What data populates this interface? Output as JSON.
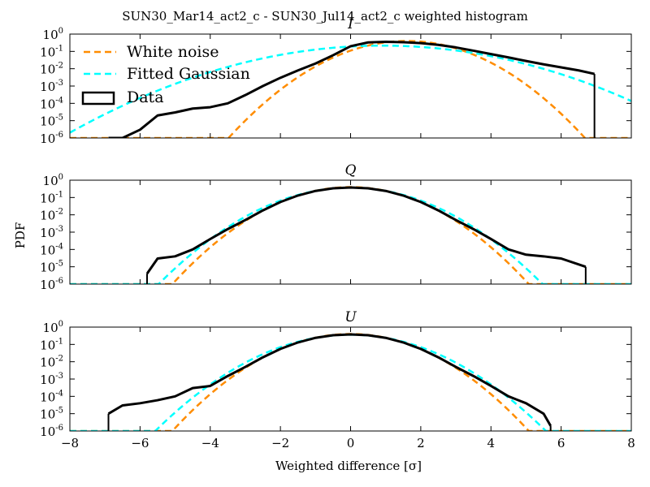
{
  "suptitle": "SUN30_Mar14_act2_c - SUN30_Jul14_act2_c weighted histogram",
  "ylabel": "PDF",
  "xlabel": "Weighted difference [σ]",
  "colors": {
    "white_noise": "#ff8c00",
    "fitted_gaussian": "#00ffff",
    "data": "#000000",
    "axes": "#000000",
    "background": "#ffffff"
  },
  "legend": {
    "placement": "upper-left (top panel)",
    "items": [
      {
        "label": "White noise",
        "style": "dashed",
        "color": "#ff8c00"
      },
      {
        "label": "Fitted Gaussian",
        "style": "dashed",
        "color": "#00ffff"
      },
      {
        "label": "Data",
        "style": "box",
        "color": "#000000"
      }
    ]
  },
  "x_ticks": [
    "−8",
    "−6",
    "−4",
    "−2",
    "0",
    "2",
    "4",
    "6",
    "8"
  ],
  "y_ticks": [
    {
      "base": "10",
      "exp": "0"
    },
    {
      "base": "10",
      "exp": "-1"
    },
    {
      "base": "10",
      "exp": "-2"
    },
    {
      "base": "10",
      "exp": "-3"
    },
    {
      "base": "10",
      "exp": "-4"
    },
    {
      "base": "10",
      "exp": "-5"
    },
    {
      "base": "10",
      "exp": "-6"
    }
  ],
  "chart_data": [
    {
      "type": "line",
      "title": "I",
      "xlim": [
        -8,
        8
      ],
      "ylim": [
        1e-06,
        1
      ],
      "yscale": "log",
      "grid": false,
      "series": [
        {
          "name": "White noise",
          "kind": "gaussian",
          "mean": 1.6,
          "sigma": 1.0
        },
        {
          "name": "Fitted Gaussian",
          "kind": "gaussian",
          "mean": 0.9,
          "sigma": 1.85
        },
        {
          "name": "Data",
          "kind": "histogram",
          "x": [
            -6.9,
            -6.5,
            -6.0,
            -5.5,
            -5.0,
            -4.5,
            -4.0,
            -3.5,
            -3.0,
            -2.5,
            -2.0,
            -1.5,
            -1.0,
            -0.5,
            0.0,
            0.5,
            1.0,
            1.5,
            2.0,
            2.5,
            3.0,
            3.5,
            4.0,
            4.5,
            5.0,
            5.5,
            6.0,
            6.5,
            6.95
          ],
          "y": [
            1e-06,
            1e-06,
            3e-06,
            2e-05,
            3e-05,
            5e-05,
            6e-05,
            0.0001,
            0.0003,
            0.001,
            0.003,
            0.008,
            0.02,
            0.06,
            0.2,
            0.33,
            0.36,
            0.34,
            0.3,
            0.24,
            0.17,
            0.11,
            0.07,
            0.045,
            0.028,
            0.018,
            0.012,
            0.008,
            0.005
          ]
        }
      ]
    },
    {
      "type": "line",
      "title": "Q",
      "xlim": [
        -8,
        8
      ],
      "ylim": [
        1e-06,
        1
      ],
      "yscale": "log",
      "grid": false,
      "series": [
        {
          "name": "White noise",
          "kind": "gaussian",
          "mean": 0.0,
          "sigma": 1.0
        },
        {
          "name": "Fitted Gaussian",
          "kind": "gaussian",
          "mean": 0.0,
          "sigma": 1.08
        },
        {
          "name": "Data",
          "kind": "histogram",
          "x": [
            -5.8,
            -5.5,
            -5.0,
            -4.5,
            -4.0,
            -3.5,
            -3.0,
            -2.5,
            -2.0,
            -1.5,
            -1.0,
            -0.5,
            0.0,
            0.5,
            1.0,
            1.5,
            2.0,
            2.5,
            3.0,
            3.5,
            4.0,
            4.5,
            5.0,
            5.5,
            6.0,
            6.7
          ],
          "y": [
            4e-06,
            3e-05,
            4e-05,
            0.0001,
            0.0004,
            0.0015,
            0.005,
            0.018,
            0.055,
            0.13,
            0.24,
            0.34,
            0.38,
            0.34,
            0.24,
            0.13,
            0.055,
            0.018,
            0.005,
            0.0015,
            0.0004,
            0.0001,
            5e-05,
            4e-05,
            3e-05,
            1e-05
          ]
        }
      ]
    },
    {
      "type": "line",
      "title": "U",
      "xlim": [
        -8,
        8
      ],
      "ylim": [
        1e-06,
        1
      ],
      "yscale": "log",
      "grid": false,
      "series": [
        {
          "name": "White noise",
          "kind": "gaussian",
          "mean": 0.0,
          "sigma": 1.0
        },
        {
          "name": "Fitted Gaussian",
          "kind": "gaussian",
          "mean": 0.0,
          "sigma": 1.1
        },
        {
          "name": "Data",
          "kind": "histogram",
          "x": [
            -6.9,
            -6.5,
            -6.0,
            -5.5,
            -5.0,
            -4.5,
            -4.0,
            -3.5,
            -3.0,
            -2.5,
            -2.0,
            -1.5,
            -1.0,
            -0.5,
            0.0,
            0.5,
            1.0,
            1.5,
            2.0,
            2.5,
            3.0,
            3.5,
            4.0,
            4.5,
            5.0,
            5.5,
            5.7
          ],
          "y": [
            1e-05,
            3e-05,
            4e-05,
            6e-05,
            0.0001,
            0.0003,
            0.0004,
            0.0015,
            0.005,
            0.018,
            0.055,
            0.13,
            0.24,
            0.34,
            0.38,
            0.34,
            0.24,
            0.13,
            0.055,
            0.018,
            0.005,
            0.0015,
            0.0004,
            0.0001,
            4e-05,
            1e-05,
            2e-06
          ]
        }
      ]
    }
  ]
}
